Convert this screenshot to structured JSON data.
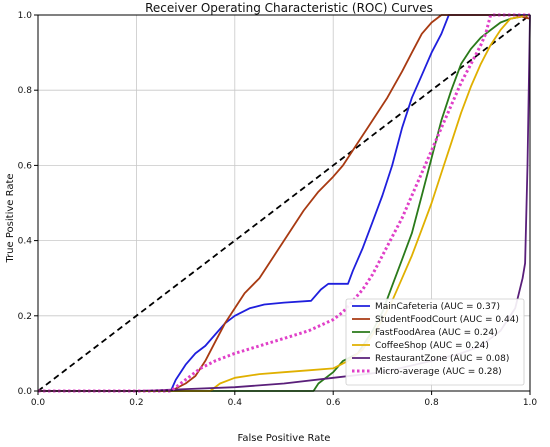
{
  "chart_data": {
    "type": "line",
    "title": "Receiver Operating Characteristic (ROC) Curves",
    "xlabel": "False Positive Rate",
    "ylabel": "True Positive Rate",
    "xlim": [
      0,
      1
    ],
    "ylim": [
      0,
      1
    ],
    "xticks": [
      "0.0",
      "0.2",
      "0.4",
      "0.6",
      "0.8",
      "1.0"
    ],
    "yticks": [
      "0.0",
      "0.2",
      "0.4",
      "0.6",
      "0.8",
      "1.0"
    ],
    "grid": true,
    "legend_position": "lower-right",
    "series": [
      {
        "name": "MainCafeteria (AUC = 0.37)",
        "color": "#1f1fdd",
        "style": "solid",
        "points": [
          [
            0,
            0
          ],
          [
            0.27,
            0
          ],
          [
            0.28,
            0.03
          ],
          [
            0.3,
            0.07
          ],
          [
            0.32,
            0.1
          ],
          [
            0.34,
            0.12
          ],
          [
            0.36,
            0.15
          ],
          [
            0.38,
            0.18
          ],
          [
            0.4,
            0.2
          ],
          [
            0.43,
            0.22
          ],
          [
            0.46,
            0.23
          ],
          [
            0.5,
            0.235
          ],
          [
            0.555,
            0.24
          ],
          [
            0.575,
            0.27
          ],
          [
            0.59,
            0.285
          ],
          [
            0.63,
            0.285
          ],
          [
            0.64,
            0.32
          ],
          [
            0.66,
            0.38
          ],
          [
            0.68,
            0.45
          ],
          [
            0.7,
            0.52
          ],
          [
            0.72,
            0.6
          ],
          [
            0.74,
            0.7
          ],
          [
            0.76,
            0.78
          ],
          [
            0.78,
            0.84
          ],
          [
            0.8,
            0.9
          ],
          [
            0.82,
            0.95
          ],
          [
            0.835,
            1.0
          ],
          [
            1.0,
            1.0
          ]
        ]
      },
      {
        "name": "StudentFoodCourt (AUC = 0.44)",
        "color": "#a83a12",
        "style": "solid",
        "points": [
          [
            0,
            0
          ],
          [
            0.27,
            0
          ],
          [
            0.3,
            0.02
          ],
          [
            0.32,
            0.04
          ],
          [
            0.34,
            0.08
          ],
          [
            0.36,
            0.13
          ],
          [
            0.38,
            0.18
          ],
          [
            0.4,
            0.22
          ],
          [
            0.42,
            0.26
          ],
          [
            0.45,
            0.3
          ],
          [
            0.48,
            0.36
          ],
          [
            0.51,
            0.42
          ],
          [
            0.54,
            0.48
          ],
          [
            0.57,
            0.53
          ],
          [
            0.6,
            0.57
          ],
          [
            0.62,
            0.6
          ],
          [
            0.65,
            0.66
          ],
          [
            0.68,
            0.72
          ],
          [
            0.71,
            0.78
          ],
          [
            0.74,
            0.85
          ],
          [
            0.76,
            0.9
          ],
          [
            0.78,
            0.95
          ],
          [
            0.8,
            0.98
          ],
          [
            0.82,
            1.0
          ],
          [
            0.97,
            1.0
          ],
          [
            1.0,
            0.99
          ]
        ]
      },
      {
        "name": "FastFoodArea (AUC = 0.24)",
        "color": "#2a7a1a",
        "style": "solid",
        "points": [
          [
            0,
            0
          ],
          [
            0.56,
            0
          ],
          [
            0.57,
            0.02
          ],
          [
            0.6,
            0.05
          ],
          [
            0.62,
            0.08
          ],
          [
            0.65,
            0.1
          ],
          [
            0.68,
            0.16
          ],
          [
            0.7,
            0.21
          ],
          [
            0.72,
            0.28
          ],
          [
            0.74,
            0.35
          ],
          [
            0.76,
            0.42
          ],
          [
            0.78,
            0.52
          ],
          [
            0.8,
            0.62
          ],
          [
            0.82,
            0.72
          ],
          [
            0.84,
            0.8
          ],
          [
            0.86,
            0.87
          ],
          [
            0.88,
            0.91
          ],
          [
            0.9,
            0.94
          ],
          [
            0.92,
            0.96
          ],
          [
            0.94,
            0.98
          ],
          [
            0.96,
            0.99
          ],
          [
            1.0,
            1.0
          ]
        ]
      },
      {
        "name": "CoffeeShop (AUC = 0.24)",
        "color": "#e0b000",
        "style": "solid",
        "points": [
          [
            0,
            0
          ],
          [
            0.35,
            0
          ],
          [
            0.37,
            0.02
          ],
          [
            0.4,
            0.035
          ],
          [
            0.45,
            0.045
          ],
          [
            0.5,
            0.05
          ],
          [
            0.55,
            0.055
          ],
          [
            0.6,
            0.06
          ],
          [
            0.63,
            0.08
          ],
          [
            0.66,
            0.11
          ],
          [
            0.68,
            0.15
          ],
          [
            0.7,
            0.19
          ],
          [
            0.72,
            0.24
          ],
          [
            0.74,
            0.3
          ],
          [
            0.76,
            0.36
          ],
          [
            0.78,
            0.43
          ],
          [
            0.8,
            0.5
          ],
          [
            0.82,
            0.58
          ],
          [
            0.84,
            0.66
          ],
          [
            0.86,
            0.74
          ],
          [
            0.88,
            0.81
          ],
          [
            0.9,
            0.87
          ],
          [
            0.92,
            0.92
          ],
          [
            0.94,
            0.96
          ],
          [
            0.96,
            0.99
          ],
          [
            1.0,
            1.0
          ]
        ]
      },
      {
        "name": "RestaurantZone (AUC = 0.08)",
        "color": "#5a1f7a",
        "style": "solid",
        "points": [
          [
            0,
            0
          ],
          [
            0.2,
            0
          ],
          [
            0.3,
            0.005
          ],
          [
            0.4,
            0.01
          ],
          [
            0.5,
            0.02
          ],
          [
            0.6,
            0.035
          ],
          [
            0.7,
            0.05
          ],
          [
            0.8,
            0.08
          ],
          [
            0.86,
            0.1
          ],
          [
            0.9,
            0.12
          ],
          [
            0.94,
            0.16
          ],
          [
            0.97,
            0.22
          ],
          [
            0.985,
            0.3
          ],
          [
            0.99,
            0.34
          ],
          [
            0.995,
            0.6
          ],
          [
            1.0,
            1.0
          ]
        ]
      },
      {
        "name": "Micro-average (AUC = 0.28)",
        "color": "#e040c8",
        "style": "dotted",
        "points": [
          [
            0,
            0
          ],
          [
            0.27,
            0
          ],
          [
            0.3,
            0.03
          ],
          [
            0.33,
            0.06
          ],
          [
            0.36,
            0.08
          ],
          [
            0.4,
            0.1
          ],
          [
            0.45,
            0.12
          ],
          [
            0.5,
            0.14
          ],
          [
            0.55,
            0.16
          ],
          [
            0.6,
            0.19
          ],
          [
            0.62,
            0.21
          ],
          [
            0.64,
            0.24
          ],
          [
            0.66,
            0.27
          ],
          [
            0.68,
            0.31
          ],
          [
            0.7,
            0.36
          ],
          [
            0.72,
            0.41
          ],
          [
            0.74,
            0.46
          ],
          [
            0.76,
            0.52
          ],
          [
            0.78,
            0.58
          ],
          [
            0.8,
            0.64
          ],
          [
            0.82,
            0.7
          ],
          [
            0.84,
            0.76
          ],
          [
            0.86,
            0.82
          ],
          [
            0.88,
            0.87
          ],
          [
            0.9,
            0.92
          ],
          [
            0.91,
            0.95
          ],
          [
            0.92,
            1.0
          ],
          [
            1.0,
            1.0
          ]
        ]
      },
      {
        "name": "",
        "color": "#000000",
        "style": "dashed",
        "legend": false,
        "points": [
          [
            0,
            0
          ],
          [
            1,
            1
          ]
        ]
      }
    ]
  }
}
